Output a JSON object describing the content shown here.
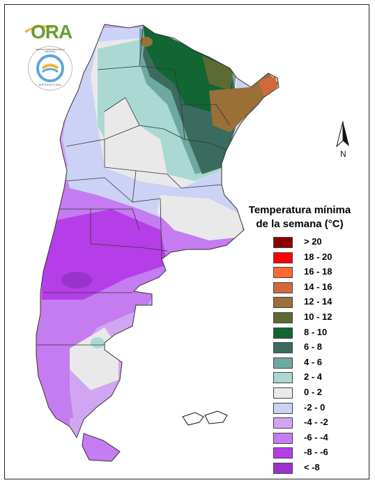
{
  "logos": {
    "ora_text": "ORA",
    "smn_ring_text": "SERVICIO METEOROLÓGICO NACIONAL",
    "smn_country_text": "ARGENTINA"
  },
  "compass": {
    "label": "N"
  },
  "legend": {
    "title_line1": "Temperatura mínima",
    "title_line2": "de la semana (°C)",
    "items": [
      {
        "label": "> 20",
        "color": "#8b0000"
      },
      {
        "label": "18 - 20",
        "color": "#ff0000"
      },
      {
        "label": "16 - 18",
        "color": "#ff6a33"
      },
      {
        "label": "14 - 16",
        "color": "#d2693a"
      },
      {
        "label": "12 - 14",
        "color": "#9a7036"
      },
      {
        "label": "10 - 12",
        "color": "#5e6a33"
      },
      {
        "label": "8 - 10",
        "color": "#116633"
      },
      {
        "label": "6 - 8",
        "color": "#3b6b5f"
      },
      {
        "label": "4 - 6",
        "color": "#6fa8a0"
      },
      {
        "label": "2 - 4",
        "color": "#a9d9d2"
      },
      {
        "label": "0 - 2",
        "color": "#e9e9e9"
      },
      {
        "label": "-2 - 0",
        "color": "#ccd2f5"
      },
      {
        "label": "-4 - -2",
        "color": "#d2a5f2"
      },
      {
        "label": "-6 - -4",
        "color": "#c47cf0"
      },
      {
        "label": "-8 - -6",
        "color": "#b63ee8"
      },
      {
        "label": "< -8",
        "color": "#9a33cc"
      }
    ]
  }
}
